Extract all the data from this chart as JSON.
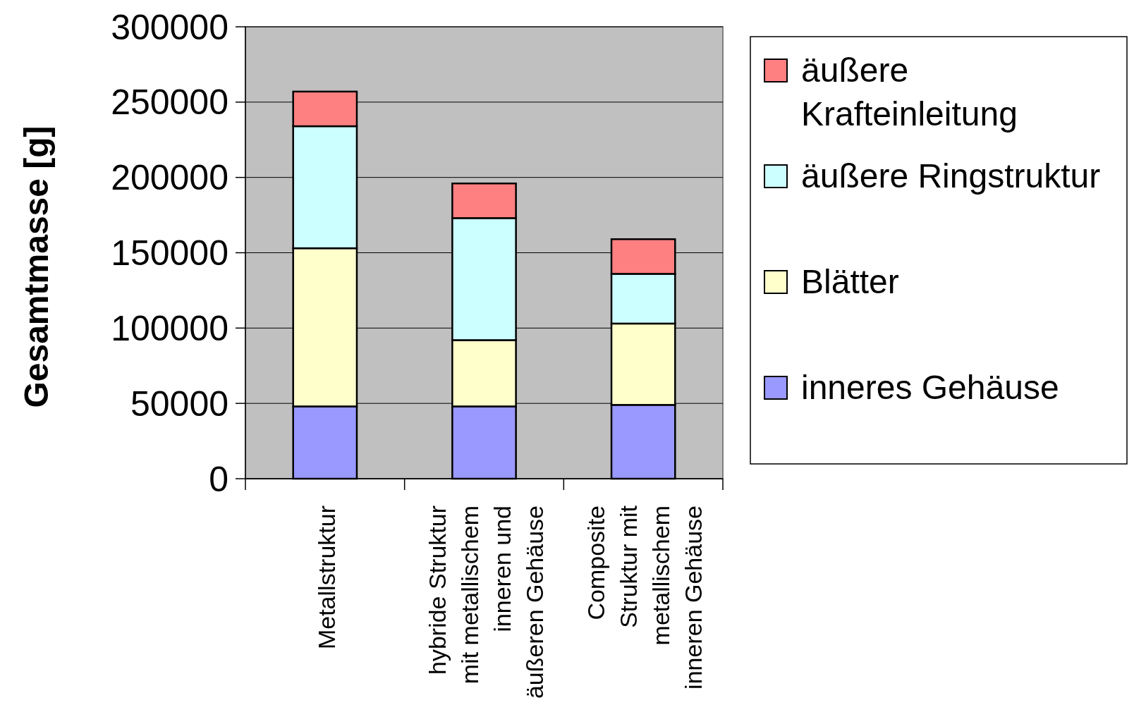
{
  "chart_data": {
    "type": "bar",
    "stacked": true,
    "ylabel": "Gesamtmasse [g]",
    "categories": [
      "Metallstruktur",
      "hybride Struktur mit metallischem inneren und äußeren Gehäuse",
      "Composite Struktur mit metallischem inneren Gehäuse"
    ],
    "series": [
      {
        "name": "inneres Gehäuse",
        "color": "#9999ff",
        "values": [
          48000,
          48000,
          49000
        ]
      },
      {
        "name": "Blätter",
        "color": "#ffffcc",
        "values": [
          105000,
          44000,
          54000
        ]
      },
      {
        "name": "äußere Ringstruktur",
        "color": "#ccffff",
        "values": [
          81000,
          81000,
          33000
        ]
      },
      {
        "name": "äußere Krafteinleitung",
        "color": "#ff8080",
        "values": [
          23000,
          23000,
          23000
        ]
      }
    ],
    "ylim": [
      0,
      300000
    ],
    "yticks": [
      0,
      50000,
      100000,
      150000,
      200000,
      250000,
      300000
    ],
    "grid": "y",
    "legend": "right"
  }
}
